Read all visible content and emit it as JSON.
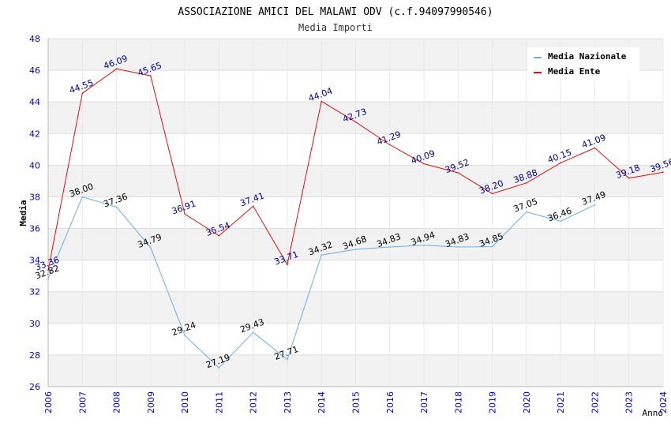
{
  "chart_data": {
    "type": "line",
    "title": "ASSOCIAZIONE AMICI DEL MALAWI ODV (c.f.94097990546)",
    "subtitle": "Media Importi",
    "xlabel": "Anno",
    "ylabel": "Media",
    "ylim": [
      26,
      48
    ],
    "yticks": [
      "26",
      "28",
      "30",
      "32",
      "34",
      "36",
      "38",
      "40",
      "42",
      "44",
      "46",
      "48"
    ],
    "x": [
      "2006",
      "2007",
      "2008",
      "2009",
      "2010",
      "2011",
      "2012",
      "2013",
      "2014",
      "2015",
      "2016",
      "2017",
      "2018",
      "2019",
      "2020",
      "2021",
      "2022",
      "2023",
      "2024"
    ],
    "grid": "horizontal bands",
    "legend_position": "top-right",
    "series": [
      {
        "name": "Media Nazionale",
        "color": "#6aaee6",
        "label_color": "#000000",
        "values": [
          32.82,
          38.0,
          37.36,
          34.79,
          29.24,
          27.19,
          29.43,
          27.71,
          34.32,
          34.68,
          34.83,
          34.94,
          34.83,
          34.85,
          37.05,
          36.46,
          37.49,
          null,
          null
        ],
        "labels": [
          "32.82",
          "38.00",
          "37.36",
          "34.79",
          "29.24",
          "27.19",
          "29.43",
          "27.71",
          "34.32",
          "34.68",
          "34.83",
          "34.94",
          "34.83",
          "34.85",
          "37.05",
          "36.46",
          "37.49",
          null,
          null
        ]
      },
      {
        "name": "Media Ente",
        "color": "#e01010",
        "label_color": "#00008b",
        "values": [
          33.36,
          44.55,
          46.09,
          45.65,
          36.91,
          35.54,
          37.41,
          33.71,
          44.04,
          42.73,
          41.29,
          40.09,
          39.52,
          38.2,
          38.88,
          40.15,
          41.09,
          39.18,
          39.56
        ],
        "labels": [
          "33.36",
          "44.55",
          "46.09",
          "45.65",
          "36.91",
          "35.54",
          "37.41",
          "33.71",
          "44.04",
          "42.73",
          "41.29",
          "40.09",
          "39.52",
          "38.20",
          "38.88",
          "40.15",
          "41.09",
          "39.18",
          "39.56"
        ]
      }
    ]
  }
}
